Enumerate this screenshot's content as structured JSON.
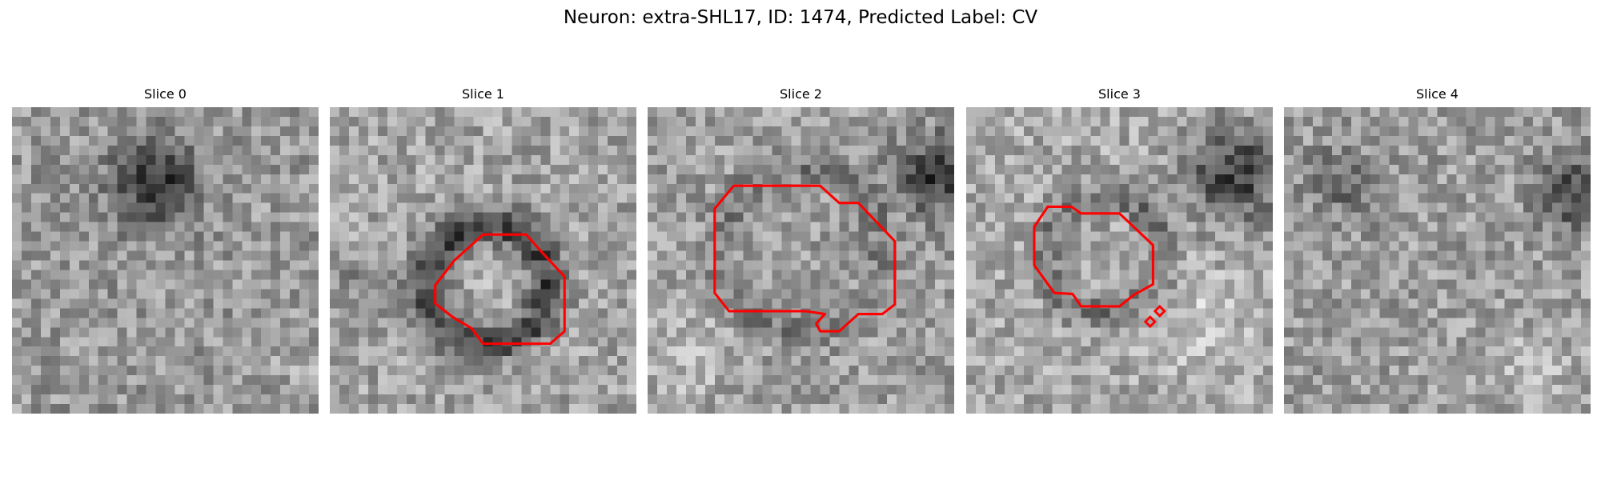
{
  "figure": {
    "title": "Neuron: extra-SHL17, ID: 1474, Predicted Label: CV"
  },
  "colors": {
    "contour": "#ff0000",
    "colormap": "gray"
  },
  "slices": [
    {
      "label": "Slice 0",
      "has_contour": false
    },
    {
      "label": "Slice 1",
      "has_contour": true
    },
    {
      "label": "Slice 2",
      "has_contour": true
    },
    {
      "label": "Slice 3",
      "has_contour": true
    },
    {
      "label": "Slice 4",
      "has_contour": false
    }
  ]
}
